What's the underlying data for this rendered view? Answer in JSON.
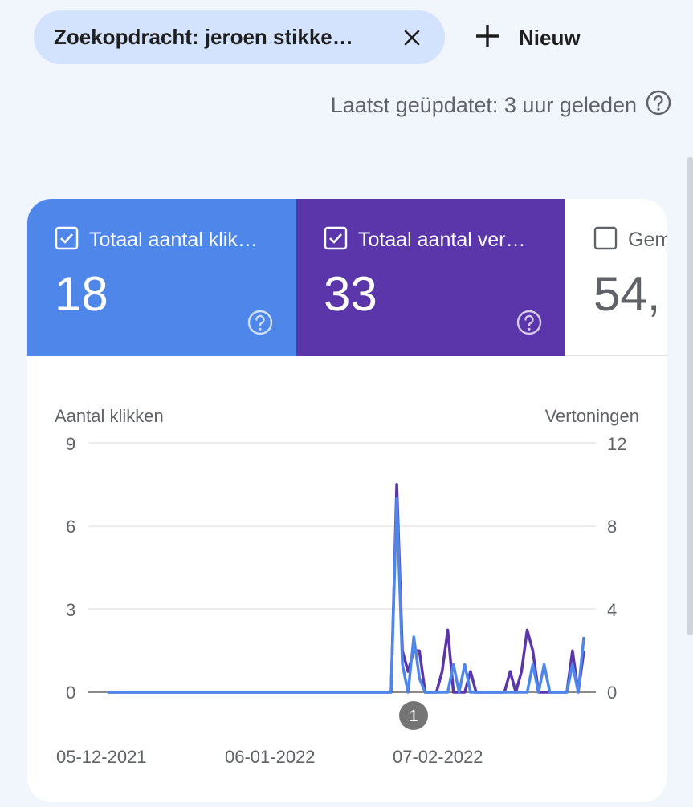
{
  "filter_chip": {
    "label": "Zoekopdracht: jeroen stikke…",
    "close_icon": "close-icon"
  },
  "new_button": {
    "label": "Nieuw",
    "icon": "plus-icon"
  },
  "last_updated": {
    "text": "Laatst geüpdatet: 3 uur geleden",
    "icon": "help-icon"
  },
  "metrics": [
    {
      "label": "Totaal aantal klik…",
      "value": "18",
      "checked": true,
      "color": "#4e86ea"
    },
    {
      "label": "Totaal aantal ver…",
      "value": "33",
      "checked": true,
      "color": "#5a36aa"
    },
    {
      "label": "Gem",
      "value": "54,",
      "checked": false,
      "color": "#ffffff"
    }
  ],
  "chart_data": {
    "type": "line",
    "ylabel_left": "Aantal klikken",
    "ylabel_right": "Vertoningen",
    "y_left_ticks": [
      "0",
      "3",
      "6",
      "9"
    ],
    "y_right_ticks": [
      "0",
      "4",
      "8",
      "12"
    ],
    "ylim_left": [
      0,
      9
    ],
    "ylim_right": [
      0,
      12
    ],
    "x_tick_labels": [
      "05-12-2021",
      "06-01-2022",
      "07-02-2022"
    ],
    "annotation": {
      "label": "1",
      "color": "#757575"
    },
    "x_range_days": 83,
    "series": [
      {
        "axis": "left",
        "color": "#4e86ea",
        "points": [
          [
            0,
            0
          ],
          [
            50,
            0
          ],
          [
            51,
            7
          ],
          [
            52,
            1
          ],
          [
            53,
            0
          ],
          [
            54,
            2
          ],
          [
            55,
            0.5
          ],
          [
            56,
            0
          ],
          [
            60,
            0
          ],
          [
            61,
            1
          ],
          [
            62,
            0
          ],
          [
            63,
            1
          ],
          [
            64,
            0
          ],
          [
            74,
            0
          ],
          [
            75,
            1
          ],
          [
            76,
            0
          ],
          [
            77,
            1
          ],
          [
            78,
            0
          ],
          [
            81,
            0
          ],
          [
            82,
            1
          ],
          [
            83,
            0
          ],
          [
            84,
            2
          ]
        ]
      },
      {
        "axis": "right",
        "color": "#5a36aa",
        "points": [
          [
            0,
            0
          ],
          [
            50,
            0
          ],
          [
            51,
            10
          ],
          [
            52,
            2
          ],
          [
            53,
            1
          ],
          [
            54,
            2
          ],
          [
            55,
            2
          ],
          [
            56,
            0
          ],
          [
            58,
            0
          ],
          [
            59,
            1
          ],
          [
            60,
            3
          ],
          [
            61,
            0
          ],
          [
            63,
            0
          ],
          [
            64,
            1
          ],
          [
            65,
            0
          ],
          [
            70,
            0
          ],
          [
            71,
            1
          ],
          [
            72,
            0
          ],
          [
            73,
            1
          ],
          [
            74,
            3
          ],
          [
            75,
            2
          ],
          [
            76,
            0
          ],
          [
            81,
            0
          ],
          [
            82,
            2
          ],
          [
            83,
            0
          ],
          [
            84,
            2
          ]
        ]
      }
    ]
  }
}
